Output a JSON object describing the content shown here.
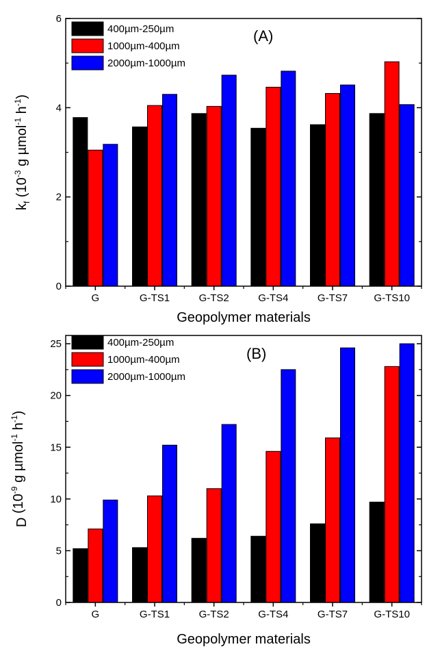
{
  "chart_data": [
    {
      "type": "bar",
      "panel_label": "(A)",
      "categories": [
        "G",
        "G-TS1",
        "G-TS2",
        "G-TS4",
        "G-TS7",
        "G-TS10"
      ],
      "series": [
        {
          "name": "400µm-250µm",
          "color": "#000000",
          "values": [
            3.78,
            3.57,
            3.87,
            3.54,
            3.62,
            3.87
          ]
        },
        {
          "name": "1000µm-400µm",
          "color": "#ff0000",
          "values": [
            3.05,
            4.05,
            4.03,
            4.46,
            4.32,
            5.03
          ]
        },
        {
          "name": "2000µm-1000µm",
          "color": "#0000ff",
          "values": [
            3.18,
            4.3,
            4.73,
            4.82,
            4.51,
            4.07
          ]
        }
      ],
      "xlabel": "Geopolymer materials",
      "ylabel": {
        "base": "k",
        "sub": "f",
        "pre": " (10",
        "exp1": "-3",
        "mid": " g µmol",
        "exp2": "-1",
        "mid2": " h",
        "exp3": "-1",
        "post": ")"
      },
      "ylim": [
        0,
        6
      ],
      "yticks": [
        "0",
        "2",
        "4",
        "6"
      ],
      "legend_position": "top-left",
      "grid": false
    },
    {
      "type": "bar",
      "panel_label": "(B)",
      "categories": [
        "G",
        "G-TS1",
        "G-TS2",
        "G-TS4",
        "G-TS7",
        "G-TS10"
      ],
      "series": [
        {
          "name": "400µm-250µm",
          "color": "#000000",
          "values": [
            5.2,
            5.3,
            6.2,
            6.4,
            7.6,
            9.7
          ]
        },
        {
          "name": "1000µm-400µm",
          "color": "#ff0000",
          "values": [
            7.1,
            10.3,
            11.0,
            14.6,
            15.9,
            22.8
          ]
        },
        {
          "name": "2000µm-1000µm",
          "color": "#0000ff",
          "values": [
            9.9,
            15.2,
            17.2,
            22.5,
            24.6,
            25.0
          ]
        }
      ],
      "xlabel": "Geopolymer materials",
      "ylabel": {
        "base": "D",
        "sub": "",
        "pre": " (10",
        "exp1": "-9",
        "mid": " g µmol",
        "exp2": "-1",
        "mid2": " h",
        "exp3": "-1",
        "post": ")"
      },
      "ylim": [
        0,
        25.8
      ],
      "yticks": [
        "0",
        "5",
        "10",
        "15",
        "20",
        "25"
      ],
      "legend_position": "top-left",
      "grid": false
    }
  ]
}
